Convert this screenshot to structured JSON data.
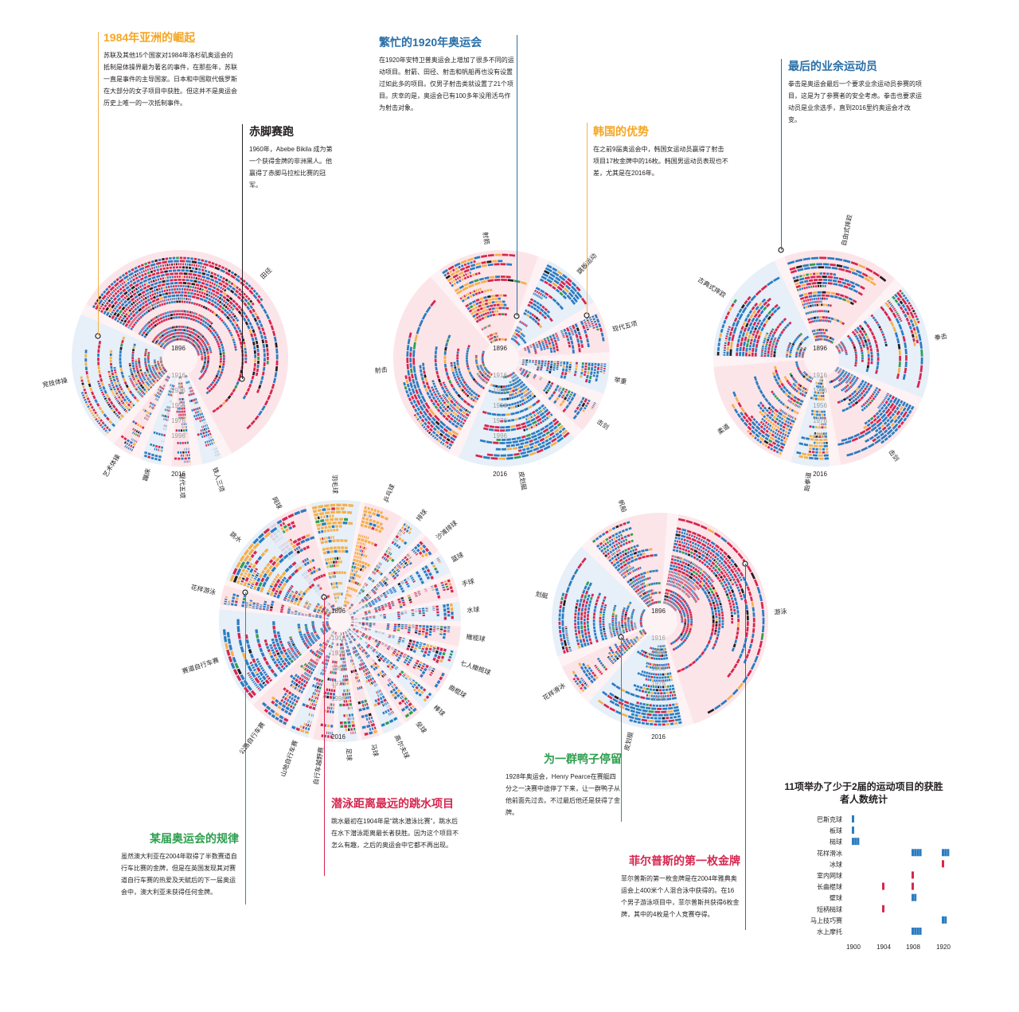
{
  "colors": {
    "red": "#d6264e",
    "blue": "#2b7cc1",
    "orange": "#f5b04a",
    "green": "#2e9e4f",
    "black": "#231f20",
    "wedge_pink": "#fbe3e6",
    "wedge_blue": "#e3eef8",
    "year_text": "#9b9b9b"
  },
  "annotations": {
    "asia_1984": {
      "title": "1984年亚洲的崛起",
      "body": "苏联及其他15个国家对1984年洛杉矶奥运会的抵制是体操界最为著名的事件，在那些年，苏联一直是事件的主导国家。日本和中国取代俄罗斯在大部分的女子项目中获胜。但这并不是奥运会历史上唯一的一次抵制事件。"
    },
    "barefoot": {
      "title": "赤脚赛跑",
      "body": "1960年，Abebe Bikila 成为第一个获得金牌的非洲黑人。他赢得了赤脚马拉松比赛的冠军。"
    },
    "busy_1920": {
      "title": "繁忙的1920年奥运会",
      "body": "在1920年安特卫普奥运会上增加了很多不同的运动项目。射箭、田径、射击和帆船再也没有设置过如此多的项目。仅男子射击类就设置了21个项目。庆幸的是，奥运会已有100多年没用活鸟作为射击对象。"
    },
    "korea": {
      "title": "韩国的优势",
      "body": "在之前9届奥运会中，韩国女运动员赢得了射击项目17枚金牌中的16枚。韩国男运动员表现也不差，尤其是在2016年。"
    },
    "amateur": {
      "title": "最后的业余运动员",
      "body": "拳击是奥运会最后一个要求业余运动员参赛的项目，这是为了参赛者的安全考虑。拳击也要求运动员是业余选手，直到2016里约奥运会才改变。"
    },
    "ducks": {
      "title": "为一群鸭子停留",
      "body": "1928年奥运会，Henry Pearce在赛艇四分之一决赛中途停了下来，让一群鸭子从他前面先过去。不过最后他还是获得了金牌。"
    },
    "diving": {
      "title": "潜泳距离最远的跳水项目",
      "body": "跳水最初在1904年是“跳水潜泳比赛”，跳水后在水下潜泳距离最长者获胜。因为这个项目不怎么有趣，之后的奥运会中它都不再出现。"
    },
    "pattern": {
      "title": "某届奥运会的规律",
      "body": "虽然澳大利亚在2004年取得了半数赛道自行车比赛的金牌，但是在英国发现其对赛道自行车赛的热爱及天赋后的下一届奥运会中，澳大利亚未获得任何金牌。"
    },
    "phelps": {
      "title": "菲尔普斯的第一枚金牌",
      "body": "菲尔普斯的第一枚金牌是在2004年雅典奥运会上400米个人混合泳中获得的。在16个男子游泳项目中，菲尔普斯共获得6枚金牌，其中的4枚是个人竞赛夺得。"
    }
  },
  "year_labels": [
    "1896",
    "1916",
    "1936",
    "1956",
    "1976",
    "1996",
    "2016"
  ],
  "wheels": {
    "w1": {
      "sports": [
        {
          "label": "田径",
          "n": 60,
          "mix": [
            0.42,
            0.4,
            0.03,
            0.03,
            0.12
          ]
        },
        {
          "label": "铁人三项",
          "n": 3,
          "mix": [
            0.3,
            0.5,
            0.1,
            0.05,
            0.05
          ]
        },
        {
          "label": "现代五项",
          "n": 3,
          "mix": [
            0.3,
            0.5,
            0.1,
            0.05,
            0.05
          ]
        },
        {
          "label": "蹦床",
          "n": 3,
          "mix": [
            0.2,
            0.6,
            0.1,
            0.05,
            0.05
          ]
        },
        {
          "label": "艺术体操",
          "n": 3,
          "mix": [
            0.3,
            0.5,
            0.1,
            0.05,
            0.05
          ]
        },
        {
          "label": "竞技体操",
          "n": 20,
          "mix": [
            0.35,
            0.3,
            0.25,
            0.03,
            0.07
          ]
        }
      ]
    },
    "w2": {
      "sports": [
        {
          "label": "射箭",
          "n": 10,
          "mix": [
            0.4,
            0.2,
            0.35,
            0.02,
            0.03
          ]
        },
        {
          "label": "跳板运动",
          "n": 6,
          "mix": [
            0.3,
            0.6,
            0.05,
            0.02,
            0.03
          ]
        },
        {
          "label": "现代五项",
          "n": 4,
          "mix": [
            0.3,
            0.6,
            0.05,
            0.02,
            0.03
          ]
        },
        {
          "label": "举重",
          "n": 3,
          "mix": [
            0.2,
            0.6,
            0.1,
            0.05,
            0.05
          ]
        },
        {
          "label": "击剑",
          "n": 3,
          "mix": [
            0.2,
            0.6,
            0.1,
            0.05,
            0.05
          ]
        },
        {
          "label": "皮划艇",
          "n": 12,
          "mix": [
            0.15,
            0.65,
            0.12,
            0.05,
            0.03
          ]
        },
        {
          "label": "射击",
          "n": 20,
          "mix": [
            0.25,
            0.55,
            0.1,
            0.05,
            0.05
          ]
        }
      ]
    },
    "w3": {
      "sports": [
        {
          "label": "自由式摔跤",
          "n": 12,
          "mix": [
            0.3,
            0.5,
            0.1,
            0.02,
            0.08
          ]
        },
        {
          "label": "拳击",
          "n": 12,
          "mix": [
            0.45,
            0.4,
            0.05,
            0.05,
            0.05
          ]
        },
        {
          "label": "击剑",
          "n": 10,
          "mix": [
            0.2,
            0.7,
            0.05,
            0.03,
            0.02
          ]
        },
        {
          "label": "跆拳道",
          "n": 4,
          "mix": [
            0.1,
            0.45,
            0.4,
            0.02,
            0.03
          ]
        },
        {
          "label": "柔道",
          "n": 12,
          "mix": [
            0.2,
            0.55,
            0.2,
            0.03,
            0.02
          ]
        },
        {
          "label": "古典式摔跤",
          "n": 12,
          "mix": [
            0.35,
            0.45,
            0.1,
            0.03,
            0.07
          ]
        }
      ]
    },
    "w4": {
      "sports": [
        {
          "label": "网球",
          "n": 5,
          "mix": [
            0.45,
            0.35,
            0.15,
            0.03,
            0.02
          ]
        },
        {
          "label": "羽毛球",
          "n": 5,
          "mix": [
            0.05,
            0.2,
            0.7,
            0.03,
            0.02
          ]
        },
        {
          "label": "乒乓球",
          "n": 4,
          "mix": [
            0.05,
            0.15,
            0.75,
            0.03,
            0.02
          ]
        },
        {
          "label": "排球",
          "n": 2,
          "mix": [
            0.4,
            0.3,
            0.2,
            0.05,
            0.05
          ]
        },
        {
          "label": "沙滩排球",
          "n": 2,
          "mix": [
            0.2,
            0.6,
            0.1,
            0.05,
            0.05
          ]
        },
        {
          "label": "篮球",
          "n": 2,
          "mix": [
            0.1,
            0.8,
            0.05,
            0.03,
            0.02
          ]
        },
        {
          "label": "手球",
          "n": 2,
          "mix": [
            0.5,
            0.3,
            0.1,
            0.05,
            0.05
          ]
        },
        {
          "label": "水球",
          "n": 2,
          "mix": [
            0.4,
            0.4,
            0.1,
            0.05,
            0.05
          ]
        },
        {
          "label": "橄榄球",
          "n": 2,
          "mix": [
            0.3,
            0.5,
            0.1,
            0.05,
            0.05
          ]
        },
        {
          "label": "七人橄榄球",
          "n": 2,
          "mix": [
            0.3,
            0.5,
            0.1,
            0.05,
            0.05
          ]
        },
        {
          "label": "曲棍球",
          "n": 2,
          "mix": [
            0.4,
            0.4,
            0.1,
            0.05,
            0.05
          ]
        },
        {
          "label": "棒球",
          "n": 1,
          "mix": [
            0.2,
            0.5,
            0.2,
            0.05,
            0.05
          ]
        },
        {
          "label": "垒球",
          "n": 1,
          "mix": [
            0.2,
            0.6,
            0.1,
            0.05,
            0.05
          ]
        },
        {
          "label": "高尔夫球",
          "n": 2,
          "mix": [
            0.3,
            0.5,
            0.1,
            0.05,
            0.05
          ]
        },
        {
          "label": "马球",
          "n": 1,
          "mix": [
            0.3,
            0.5,
            0.1,
            0.05,
            0.05
          ]
        },
        {
          "label": "足球",
          "n": 2,
          "mix": [
            0.4,
            0.3,
            0.1,
            0.15,
            0.05
          ]
        },
        {
          "label": "自行车越野赛",
          "n": 2,
          "mix": [
            0.3,
            0.5,
            0.1,
            0.05,
            0.05
          ]
        },
        {
          "label": "山地自行车赛",
          "n": 2,
          "mix": [
            0.3,
            0.5,
            0.1,
            0.05,
            0.05
          ]
        },
        {
          "label": "公路自行车赛",
          "n": 4,
          "mix": [
            0.3,
            0.5,
            0.1,
            0.05,
            0.05
          ]
        },
        {
          "label": "赛道自行车赛",
          "n": 10,
          "mix": [
            0.2,
            0.7,
            0.05,
            0.02,
            0.03
          ]
        },
        {
          "label": "花样游泳",
          "n": 2,
          "mix": [
            0.2,
            0.6,
            0.15,
            0.02,
            0.03
          ]
        },
        {
          "label": "跳水",
          "n": 8,
          "mix": [
            0.2,
            0.3,
            0.45,
            0.02,
            0.03
          ]
        }
      ]
    },
    "w5": {
      "sports": [
        {
          "label": "游泳",
          "n": 34,
          "mix": [
            0.48,
            0.4,
            0.03,
            0.03,
            0.06
          ]
        },
        {
          "label": "皮划艇",
          "n": 12,
          "mix": [
            0.15,
            0.65,
            0.12,
            0.05,
            0.03
          ]
        },
        {
          "label": "花样滑冰",
          "n": 4,
          "mix": [
            0.2,
            0.6,
            0.1,
            0.05,
            0.05
          ]
        },
        {
          "label": "划艇",
          "n": 14,
          "mix": [
            0.3,
            0.55,
            0.05,
            0.07,
            0.03
          ]
        },
        {
          "label": "帆船",
          "n": 10,
          "mix": [
            0.3,
            0.5,
            0.05,
            0.1,
            0.05
          ]
        }
      ]
    }
  },
  "chart_data": [
    {
      "type": "radial-bar",
      "title": "",
      "years": [
        "1896",
        "1916",
        "1936",
        "1956",
        "1976",
        "1996",
        "2016"
      ],
      "series": [
        {
          "name": "田径"
        },
        {
          "name": "铁人三项"
        },
        {
          "name": "现代五项"
        },
        {
          "name": "蹦床"
        },
        {
          "name": "艺术体操"
        },
        {
          "name": "竞技体操"
        }
      ]
    },
    {
      "type": "radial-bar",
      "title": "",
      "years": [
        "1896",
        "1916",
        "1936",
        "1956",
        "1976",
        "1996",
        "2016"
      ],
      "series": [
        {
          "name": "射箭"
        },
        {
          "name": "跳板运动"
        },
        {
          "name": "现代五项"
        },
        {
          "name": "举重"
        },
        {
          "name": "击剑"
        },
        {
          "name": "皮划艇"
        },
        {
          "name": "射击"
        }
      ]
    },
    {
      "type": "radial-bar",
      "title": "",
      "years": [
        "1896",
        "1916",
        "1936",
        "1956",
        "1976",
        "1996",
        "2016"
      ],
      "series": [
        {
          "name": "自由式摔跤"
        },
        {
          "name": "拳击"
        },
        {
          "name": "击剑"
        },
        {
          "name": "跆拳道"
        },
        {
          "name": "柔道"
        },
        {
          "name": "古典式摔跤"
        }
      ]
    },
    {
      "type": "radial-bar",
      "title": "",
      "years": [
        "1896",
        "1916",
        "1936",
        "1956",
        "1976",
        "1996",
        "2016"
      ],
      "series": [
        {
          "name": "网球"
        },
        {
          "name": "羽毛球"
        },
        {
          "name": "乒乓球"
        },
        {
          "name": "排球"
        },
        {
          "name": "沙滩排球"
        },
        {
          "name": "篮球"
        },
        {
          "name": "手球"
        },
        {
          "name": "水球"
        },
        {
          "name": "橄榄球"
        },
        {
          "name": "七人橄榄球"
        },
        {
          "name": "曲棍球"
        },
        {
          "name": "棒球"
        },
        {
          "name": "垒球"
        },
        {
          "name": "高尔夫球"
        },
        {
          "name": "马球"
        },
        {
          "name": "足球"
        },
        {
          "name": "自行车越野赛"
        },
        {
          "name": "山地自行车赛"
        },
        {
          "name": "公路自行车赛"
        },
        {
          "name": "赛道自行车赛"
        },
        {
          "name": "花样游泳"
        },
        {
          "name": "跳水"
        }
      ]
    },
    {
      "type": "radial-bar",
      "title": "",
      "years": [
        "1896",
        "1916",
        "1936",
        "1956",
        "1976",
        "1996",
        "2016"
      ],
      "series": [
        {
          "name": "游泳"
        },
        {
          "name": "皮划艇"
        },
        {
          "name": "花样滑冰"
        },
        {
          "name": "划艇"
        },
        {
          "name": "帆船"
        }
      ]
    },
    {
      "type": "bar",
      "title": "11项举办了少于2届的运动项目的获胜者人数统计",
      "xlabel": "",
      "ylabel": "",
      "x_ticks": [
        "1900",
        "1904",
        "1908",
        "1920"
      ],
      "categories": [
        "巴斯克球",
        "板球",
        "槌球",
        "花样滑冰",
        "冰球",
        "室内网球",
        "长曲棍球",
        "壁球",
        "短柄槌球",
        "马上技巧赛",
        "水上摩托"
      ],
      "marks": [
        {
          "sport": "巴斯克球",
          "year": 1900,
          "colors": [
            "blue"
          ]
        },
        {
          "sport": "板球",
          "year": 1900,
          "colors": [
            "blue"
          ]
        },
        {
          "sport": "槌球",
          "year": 1900,
          "colors": [
            "blue",
            "blue",
            "blue"
          ]
        },
        {
          "sport": "花样滑冰",
          "year": 1908,
          "colors": [
            "blue",
            "blue",
            "blue",
            "blue"
          ]
        },
        {
          "sport": "花样滑冰",
          "year": 1920,
          "colors": [
            "blue",
            "blue",
            "blue"
          ]
        },
        {
          "sport": "冰球",
          "year": 1920,
          "colors": [
            "red"
          ]
        },
        {
          "sport": "室内网球",
          "year": 1908,
          "colors": [
            "red"
          ]
        },
        {
          "sport": "长曲棍球",
          "year": 1904,
          "colors": [
            "red"
          ]
        },
        {
          "sport": "长曲棍球",
          "year": 1908,
          "colors": [
            "red"
          ]
        },
        {
          "sport": "壁球",
          "year": 1908,
          "colors": [
            "blue",
            "blue"
          ]
        },
        {
          "sport": "短柄槌球",
          "year": 1904,
          "colors": [
            "red"
          ]
        },
        {
          "sport": "马上技巧赛",
          "year": 1920,
          "colors": [
            "blue",
            "blue"
          ]
        },
        {
          "sport": "水上摩托",
          "year": 1908,
          "colors": [
            "blue",
            "blue",
            "blue",
            "blue"
          ]
        }
      ]
    }
  ]
}
